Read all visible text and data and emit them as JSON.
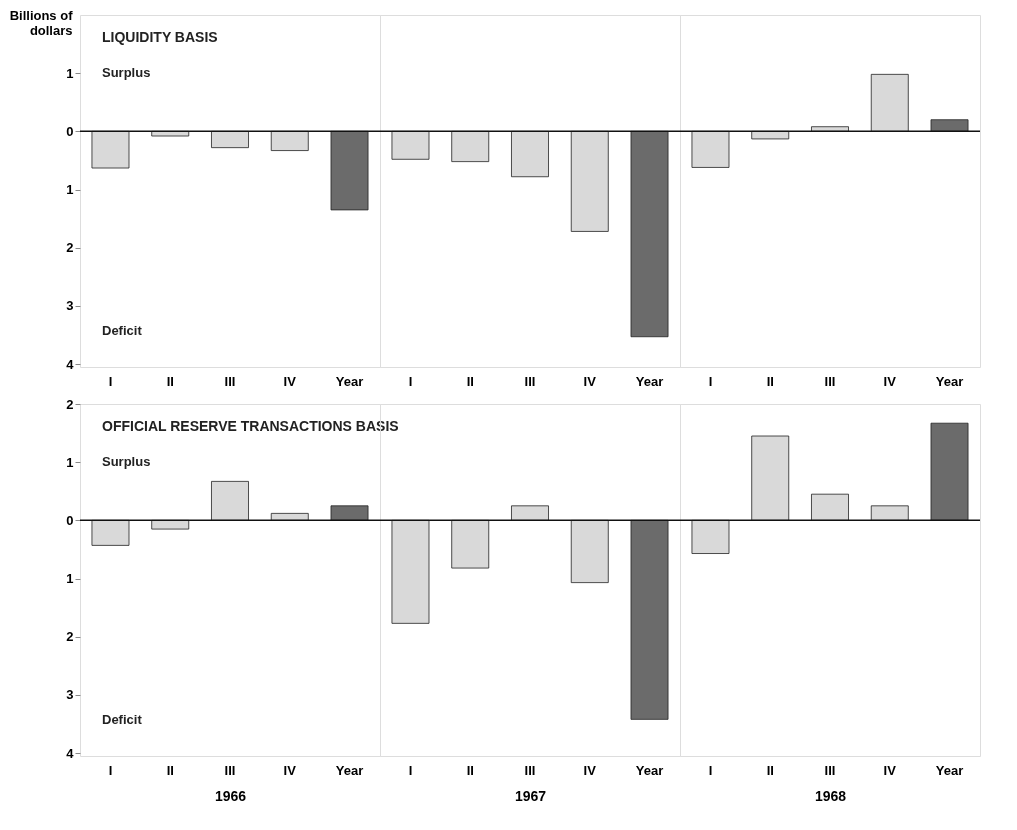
{
  "chart_data": [
    {
      "type": "bar",
      "title": "LIQUIDITY BASIS",
      "ylabel": "Billions of dollars",
      "annotations": [
        "Surplus",
        "Deficit"
      ],
      "categories": [
        "I",
        "II",
        "III",
        "IV",
        "Year"
      ],
      "values": [
        -0.63,
        -0.08,
        -0.28,
        -0.33,
        -1.35
      ],
      "colors": [
        "#d9d9d9",
        "#d9d9d9",
        "#d9d9d9",
        "#d9d9d9",
        "#6b6b6b"
      ],
      "ylim": [
        -4.05,
        2.0
      ],
      "yticks": [
        {
          "value": 1,
          "label": "1"
        },
        0,
        {
          "value": -1,
          "label": "1"
        },
        {
          "value": -2,
          "label": "2"
        },
        {
          "value": -3,
          "label": "3"
        },
        {
          "value": -4,
          "label": "4"
        }
      ],
      "ref_lines": [
        {
          "axis": "y",
          "value": 0
        }
      ]
    },
    {
      "type": "bar",
      "categories": [
        "I",
        "II",
        "III",
        "IV",
        "Year"
      ],
      "values": [
        -0.48,
        -0.52,
        -0.78,
        -1.72,
        -3.53
      ],
      "colors": [
        "#d9d9d9",
        "#d9d9d9",
        "#d9d9d9",
        "#d9d9d9",
        "#6b6b6b"
      ],
      "ylim": [
        -4.05,
        2.0
      ],
      "tick_labels": "x",
      "ref_lines": [
        {
          "axis": "y",
          "value": 0
        }
      ]
    },
    {
      "type": "bar",
      "categories": [
        "I",
        "II",
        "III",
        "IV",
        "Year"
      ],
      "values": [
        -0.62,
        -0.13,
        0.08,
        0.98,
        0.2
      ],
      "colors": [
        "#d9d9d9",
        "#d9d9d9",
        "#d9d9d9",
        "#d9d9d9",
        "#6b6b6b"
      ],
      "ylim": [
        -4.05,
        2.0
      ],
      "tick_labels": "x",
      "ref_lines": [
        {
          "axis": "y",
          "value": 0
        }
      ]
    },
    {
      "type": "bar",
      "title": "OFFICIAL RESERVE TRANSACTIONS BASIS",
      "xlabel": "1966",
      "annotations": [
        "Surplus",
        "Deficit"
      ],
      "categories": [
        "I",
        "II",
        "III",
        "IV",
        "Year"
      ],
      "values": [
        -0.43,
        -0.15,
        0.67,
        0.12,
        0.25
      ],
      "colors": [
        "#d9d9d9",
        "#d9d9d9",
        "#d9d9d9",
        "#d9d9d9",
        "#6b6b6b"
      ],
      "ylim": [
        -4.05,
        2.0
      ],
      "yticks": [
        {
          "value": 2,
          "label": "2"
        },
        {
          "value": 1,
          "label": "1"
        },
        0,
        {
          "value": -1,
          "label": "1"
        },
        {
          "value": -2,
          "label": "2"
        },
        {
          "value": -3,
          "label": "3"
        },
        {
          "value": -4,
          "label": "4"
        }
      ],
      "ref_lines": [
        {
          "axis": "y",
          "value": 0
        }
      ]
    },
    {
      "type": "bar",
      "xlabel": "1967",
      "categories": [
        "I",
        "II",
        "III",
        "IV",
        "Year"
      ],
      "values": [
        -1.77,
        -0.82,
        0.25,
        -1.07,
        -3.42
      ],
      "colors": [
        "#d9d9d9",
        "#d9d9d9",
        "#d9d9d9",
        "#d9d9d9",
        "#6b6b6b"
      ],
      "ylim": [
        -4.05,
        2.0
      ],
      "tick_labels": "x",
      "ref_lines": [
        {
          "axis": "y",
          "value": 0
        }
      ]
    },
    {
      "type": "bar",
      "xlabel": "1968",
      "categories": [
        "I",
        "II",
        "III",
        "IV",
        "Year"
      ],
      "values": [
        -0.57,
        1.45,
        0.45,
        0.25,
        1.67
      ],
      "colors": [
        "#d9d9d9",
        "#d9d9d9",
        "#d9d9d9",
        "#d9d9d9",
        "#6b6b6b"
      ],
      "ylim": [
        -4.05,
        2.0
      ],
      "tick_labels": "x",
      "ref_lines": [
        {
          "axis": "y",
          "value": 0
        }
      ]
    }
  ]
}
